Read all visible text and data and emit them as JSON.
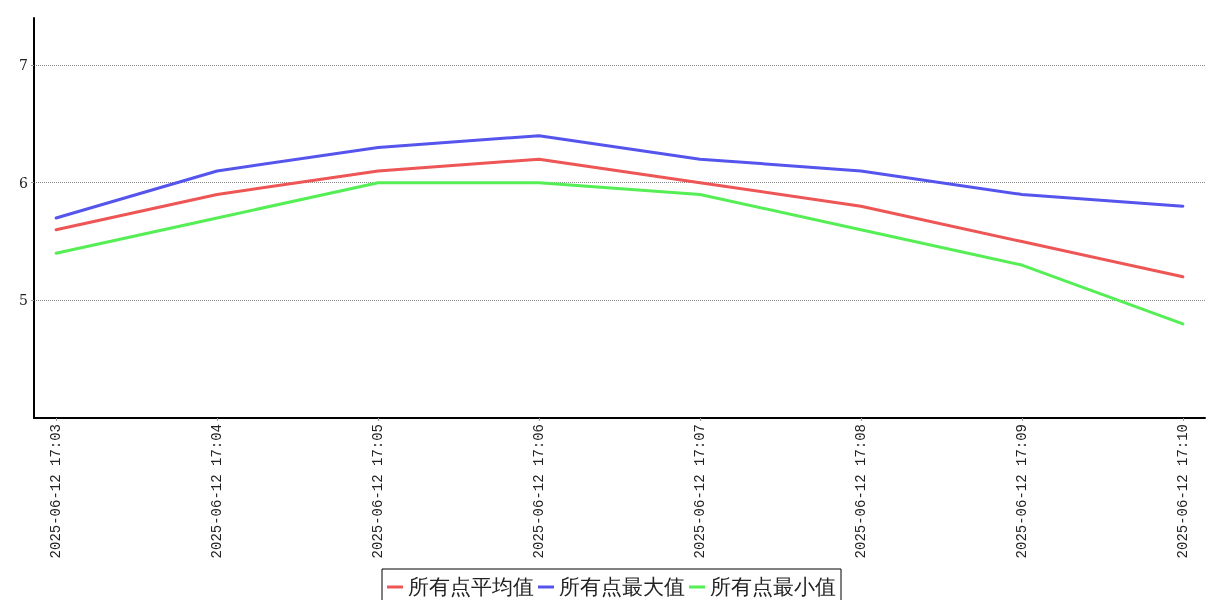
{
  "chart_data": {
    "type": "line",
    "categories": [
      "2025-06-12 17:03",
      "2025-06-12 17:04",
      "2025-06-12 17:05",
      "2025-06-12 17:06",
      "2025-06-12 17:07",
      "2025-06-12 17:08",
      "2025-06-12 17:09",
      "2025-06-12 17:10"
    ],
    "series": [
      {
        "name": "所有点平均值",
        "color": "#ee5555",
        "values": [
          5.6,
          5.9,
          6.1,
          6.2,
          6.0,
          5.8,
          5.5,
          5.2
        ]
      },
      {
        "name": "所有点最大值",
        "color": "#5555ee",
        "values": [
          5.7,
          6.1,
          6.3,
          6.4,
          6.2,
          6.1,
          5.9,
          5.8
        ]
      },
      {
        "name": "所有点最小值",
        "color": "#55ee55",
        "values": [
          5.4,
          5.7,
          6.0,
          6.0,
          5.9,
          5.6,
          5.3,
          4.8
        ]
      }
    ],
    "ylim": [
      4,
      7.4
    ],
    "yticks": [
      5,
      6,
      7
    ],
    "grid": "y",
    "legend": "bottom",
    "marker": "none",
    "line_style": "solid"
  }
}
